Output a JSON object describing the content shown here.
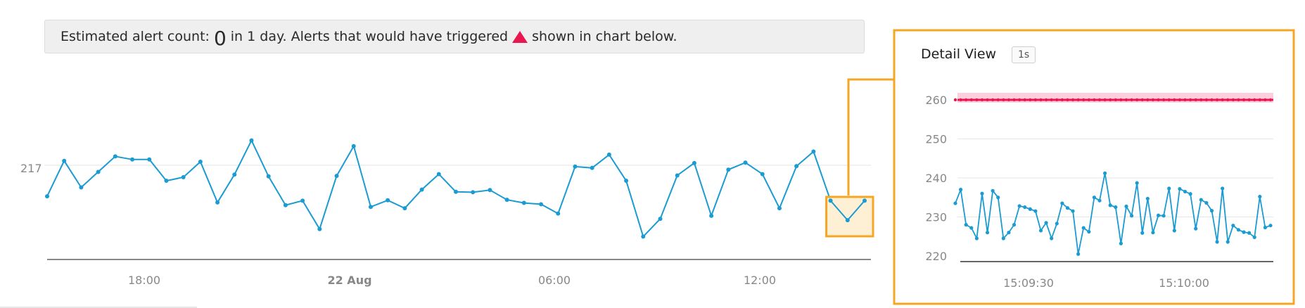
{
  "banner": {
    "prefix": "Estimated alert count:",
    "count": "0",
    "middle": "in 1 day. Alerts that would have triggered",
    "suffix": "shown in chart below.",
    "marker_icon": "red-triangle-icon"
  },
  "colors": {
    "series": "#1a9bd1",
    "threshold": "#e8174f",
    "threshold_band": "#fbd0dc",
    "highlight": "#f5a623",
    "highlight_fill": "#fdeccb"
  },
  "detail": {
    "title": "Detail View",
    "badge": "1s"
  },
  "chart_data": [
    {
      "type": "line",
      "title": "",
      "xlabel": "",
      "ylabel": "",
      "x_ticks": [
        "18:00",
        "22 Aug",
        "06:00",
        "12:00"
      ],
      "y_tick_label": "217",
      "y_tick_value": 217,
      "values": [
        210,
        218,
        212,
        215.5,
        219,
        218.3,
        218.3,
        213.5,
        214.3,
        217.8,
        208.6,
        214.9,
        222.6,
        214.5,
        208,
        209,
        202.6,
        214.6,
        221.3,
        207.6,
        209.1,
        207.3,
        211.5,
        215,
        211,
        210.9,
        211.4,
        209.2,
        208.5,
        208.2,
        206.1,
        216.7,
        216.4,
        219.4,
        213.5,
        200.9,
        204.9,
        214.7,
        217.5,
        205.6,
        216,
        217.6,
        215.0,
        207.3,
        216.8,
        220.1,
        209,
        204.6,
        209
      ],
      "highlight_range": [
        46,
        48
      ],
      "grid": true,
      "legend": "none"
    },
    {
      "type": "line",
      "title": "Detail View",
      "xlabel": "",
      "ylabel": "",
      "x_ticks": [
        "15:09:30",
        "15:10:00"
      ],
      "ylim": [
        220,
        260
      ],
      "y_ticks": [
        220,
        230,
        240,
        250,
        260
      ],
      "threshold": 260,
      "values": [
        233.5,
        237,
        228,
        227.2,
        224.5,
        236,
        226,
        236.7,
        235,
        224.5,
        226,
        228,
        232.8,
        232.5,
        232,
        231.5,
        226.5,
        228.5,
        224.5,
        228.3,
        233.5,
        232.3,
        231.5,
        220.5,
        227.2,
        226.2,
        235,
        234.2,
        241.2,
        233,
        232.5,
        223.2,
        232.7,
        230.3,
        238.7,
        225.9,
        234.7,
        226,
        230.4,
        230.3,
        237.3,
        226.5,
        237.2,
        236.5,
        235.9,
        227,
        234.4,
        233.6,
        231.6,
        223.6,
        237.3,
        223.6,
        227.8,
        226.7,
        226.1,
        225.9,
        224.8,
        235.2,
        227.3,
        227.8
      ],
      "grid": true,
      "legend": "none"
    }
  ]
}
